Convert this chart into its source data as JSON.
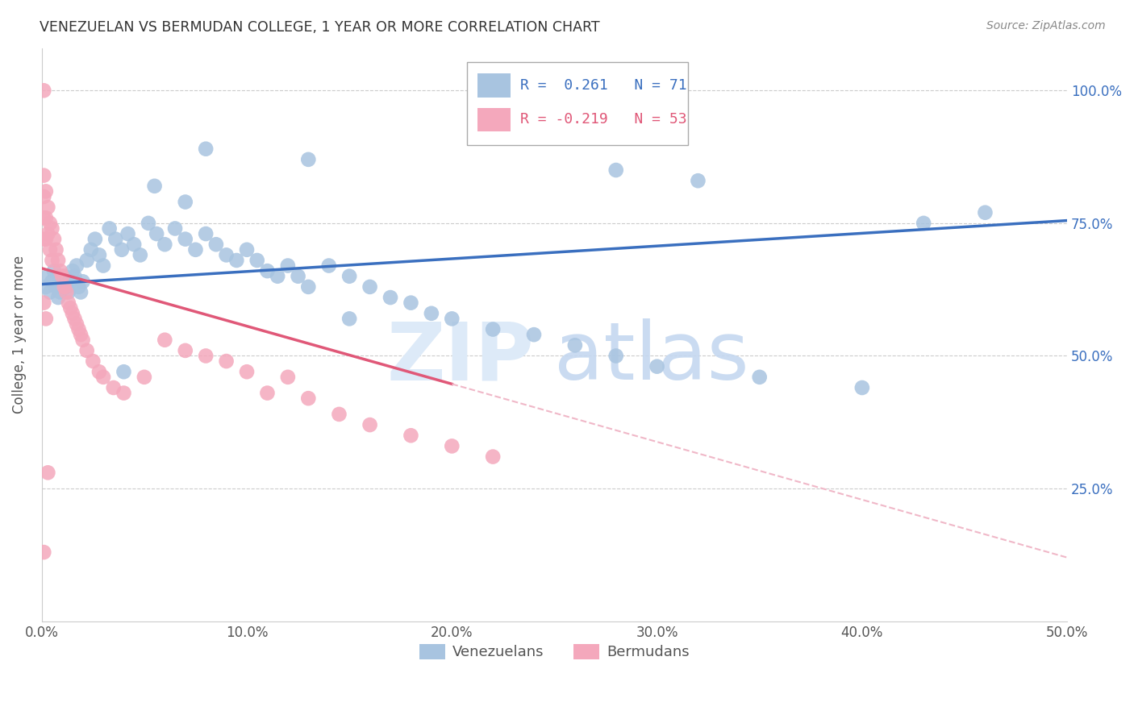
{
  "title": "VENEZUELAN VS BERMUDAN COLLEGE, 1 YEAR OR MORE CORRELATION CHART",
  "source": "Source: ZipAtlas.com",
  "ylabel_label": "College, 1 year or more",
  "x_tick_labels": [
    "0.0%",
    "10.0%",
    "20.0%",
    "30.0%",
    "40.0%",
    "50.0%"
  ],
  "x_tick_values": [
    0.0,
    0.1,
    0.2,
    0.3,
    0.4,
    0.5
  ],
  "y_tick_labels": [
    "25.0%",
    "50.0%",
    "75.0%",
    "100.0%"
  ],
  "y_tick_values": [
    0.25,
    0.5,
    0.75,
    1.0
  ],
  "xlim": [
    0.0,
    0.5
  ],
  "ylim": [
    0.0,
    1.08
  ],
  "legend_r_blue": "R =  0.261",
  "legend_n_blue": "N = 71",
  "legend_r_pink": "R = -0.219",
  "legend_n_pink": "N = 53",
  "blue_color": "#a8c4e0",
  "pink_color": "#f4a8bc",
  "trendline_blue": "#3a6fbf",
  "trendline_pink_solid": "#e05878",
  "trendline_pink_dashed": "#f0b8c8",
  "watermark_zip": "ZIP",
  "watermark_atlas": "atlas",
  "grid_color": "#cccccc",
  "trendline_blue_x0": 0.0,
  "trendline_blue_y0": 0.635,
  "trendline_blue_x1": 0.5,
  "trendline_blue_y1": 0.755,
  "trendline_pink_x0": 0.0,
  "trendline_pink_y0": 0.665,
  "trendline_pink_x1": 0.5,
  "trendline_pink_y1": 0.12,
  "trendline_pink_solid_end": 0.2,
  "ven_x": [
    0.002,
    0.003,
    0.004,
    0.005,
    0.006,
    0.007,
    0.008,
    0.009,
    0.01,
    0.011,
    0.012,
    0.013,
    0.014,
    0.015,
    0.016,
    0.017,
    0.018,
    0.019,
    0.02,
    0.022,
    0.024,
    0.026,
    0.028,
    0.03,
    0.033,
    0.036,
    0.039,
    0.042,
    0.045,
    0.048,
    0.052,
    0.056,
    0.06,
    0.065,
    0.07,
    0.075,
    0.08,
    0.085,
    0.09,
    0.095,
    0.1,
    0.105,
    0.11,
    0.115,
    0.12,
    0.125,
    0.13,
    0.14,
    0.15,
    0.16,
    0.17,
    0.18,
    0.19,
    0.2,
    0.22,
    0.24,
    0.26,
    0.28,
    0.3,
    0.35,
    0.4,
    0.43,
    0.46,
    0.28,
    0.32,
    0.13,
    0.08,
    0.04,
    0.055,
    0.07,
    0.15
  ],
  "ven_y": [
    0.63,
    0.65,
    0.62,
    0.64,
    0.66,
    0.63,
    0.61,
    0.62,
    0.64,
    0.65,
    0.63,
    0.62,
    0.64,
    0.66,
    0.65,
    0.67,
    0.63,
    0.62,
    0.64,
    0.68,
    0.7,
    0.72,
    0.69,
    0.67,
    0.74,
    0.72,
    0.7,
    0.73,
    0.71,
    0.69,
    0.75,
    0.73,
    0.71,
    0.74,
    0.72,
    0.7,
    0.73,
    0.71,
    0.69,
    0.68,
    0.7,
    0.68,
    0.66,
    0.65,
    0.67,
    0.65,
    0.63,
    0.67,
    0.65,
    0.63,
    0.61,
    0.6,
    0.58,
    0.57,
    0.55,
    0.54,
    0.52,
    0.5,
    0.48,
    0.46,
    0.44,
    0.75,
    0.77,
    0.85,
    0.83,
    0.87,
    0.89,
    0.47,
    0.82,
    0.79,
    0.57
  ],
  "berm_x": [
    0.001,
    0.001,
    0.001,
    0.001,
    0.001,
    0.002,
    0.002,
    0.002,
    0.003,
    0.003,
    0.004,
    0.004,
    0.005,
    0.005,
    0.006,
    0.007,
    0.008,
    0.009,
    0.01,
    0.011,
    0.012,
    0.013,
    0.014,
    0.015,
    0.016,
    0.017,
    0.018,
    0.019,
    0.02,
    0.022,
    0.025,
    0.028,
    0.03,
    0.035,
    0.04,
    0.05,
    0.06,
    0.07,
    0.08,
    0.09,
    0.1,
    0.11,
    0.12,
    0.13,
    0.145,
    0.16,
    0.18,
    0.2,
    0.22,
    0.001,
    0.002,
    0.001,
    0.003
  ],
  "berm_y": [
    1.0,
    0.84,
    0.8,
    0.76,
    0.72,
    0.81,
    0.76,
    0.72,
    0.78,
    0.73,
    0.75,
    0.7,
    0.74,
    0.68,
    0.72,
    0.7,
    0.68,
    0.66,
    0.65,
    0.63,
    0.62,
    0.6,
    0.59,
    0.58,
    0.57,
    0.56,
    0.55,
    0.54,
    0.53,
    0.51,
    0.49,
    0.47,
    0.46,
    0.44,
    0.43,
    0.46,
    0.53,
    0.51,
    0.5,
    0.49,
    0.47,
    0.43,
    0.46,
    0.42,
    0.39,
    0.37,
    0.35,
    0.33,
    0.31,
    0.6,
    0.57,
    0.13,
    0.28
  ]
}
